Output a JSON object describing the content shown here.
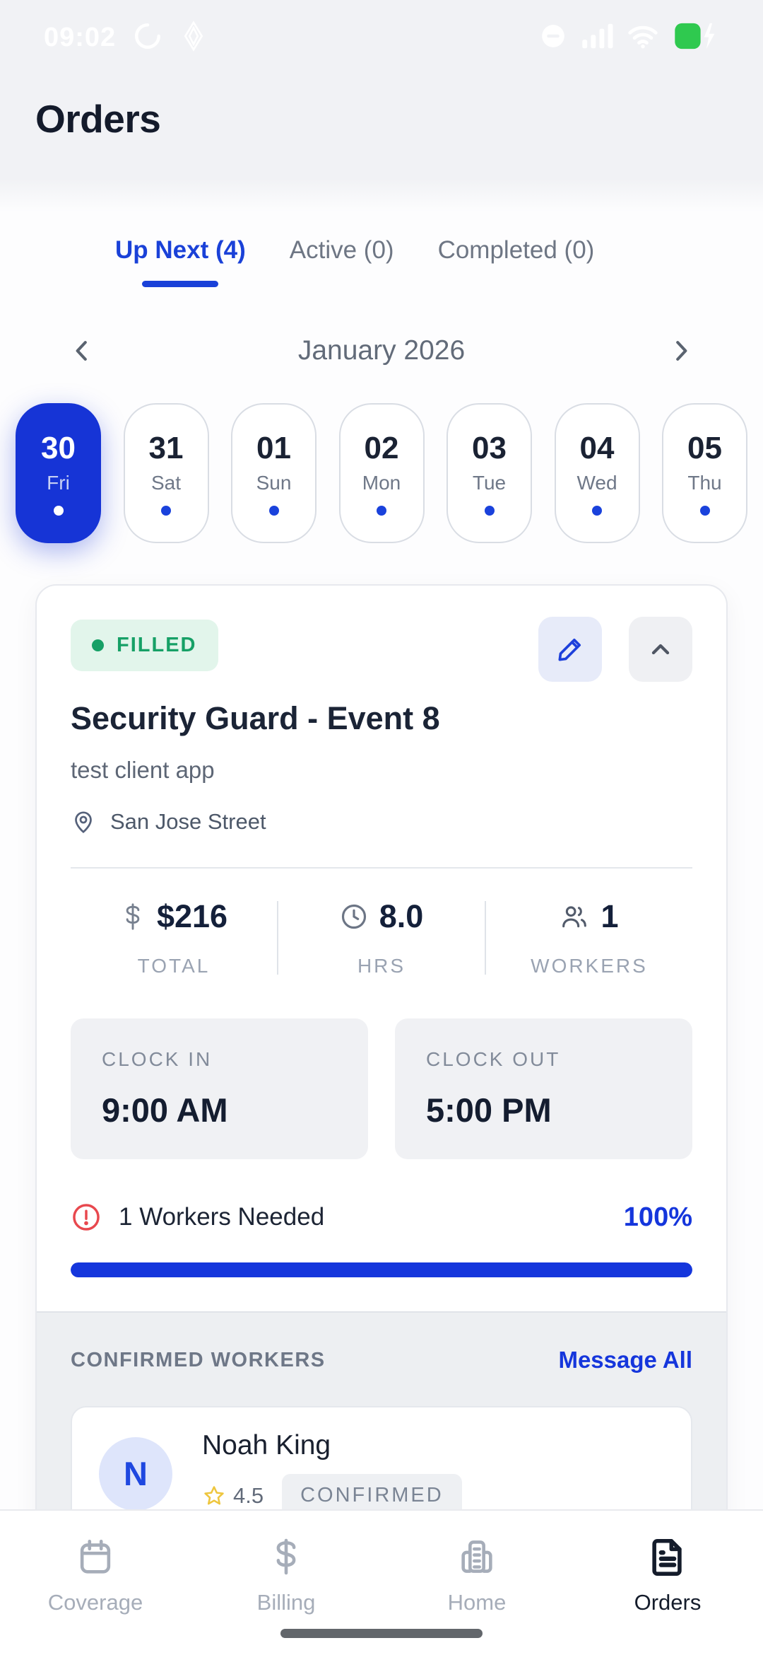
{
  "status_bar": {
    "time": "09:02"
  },
  "header": {
    "title": "Orders"
  },
  "tabs": [
    {
      "label": "Up Next (4)",
      "active": true
    },
    {
      "label": "Active (0)",
      "active": false
    },
    {
      "label": "Completed (0)",
      "active": false
    }
  ],
  "calendar": {
    "month": "January 2026",
    "days": [
      {
        "num": "30",
        "day": "Fri",
        "selected": true
      },
      {
        "num": "31",
        "day": "Sat",
        "selected": false
      },
      {
        "num": "01",
        "day": "Sun",
        "selected": false
      },
      {
        "num": "02",
        "day": "Mon",
        "selected": false
      },
      {
        "num": "03",
        "day": "Tue",
        "selected": false
      },
      {
        "num": "04",
        "day": "Wed",
        "selected": false
      },
      {
        "num": "05",
        "day": "Thu",
        "selected": false
      }
    ]
  },
  "order_card": {
    "status": "FILLED",
    "title": "Security Guard - Event 8",
    "client": "test client app",
    "location": "San Jose Street",
    "stats": [
      {
        "value": "$216",
        "label": "TOTAL",
        "icon": "dollar-icon"
      },
      {
        "value": "8.0",
        "label": "HRS",
        "icon": "clock-icon"
      },
      {
        "value": "1",
        "label": "WORKERS",
        "icon": "workers-icon"
      }
    ],
    "clock_in": {
      "label": "CLOCK IN",
      "value": "9:00 AM"
    },
    "clock_out": {
      "label": "CLOCK OUT",
      "value": "5:00 PM"
    },
    "workers_needed": "1 Workers Needed",
    "fill_percent": "100%",
    "progress": 100
  },
  "confirmed_workers": {
    "header": "CONFIRMED WORKERS",
    "action": "Message All",
    "workers": [
      {
        "initial": "N",
        "name": "Noah King",
        "rating": "4.5",
        "status": "CONFIRMED"
      }
    ]
  },
  "bottom_nav": [
    {
      "label": "Coverage",
      "icon": "calendar-icon",
      "active": false
    },
    {
      "label": "Billing",
      "icon": "dollar-icon",
      "active": false
    },
    {
      "label": "Home",
      "icon": "building-icon",
      "active": false
    },
    {
      "label": "Orders",
      "icon": "document-icon",
      "active": true
    }
  ],
  "colors": {
    "primary_blue": "#1536dc",
    "chip_blue": "#1634d6",
    "success_green": "#16a066",
    "alert_red": "#e8484e",
    "star_yellow": "#eec63e"
  }
}
